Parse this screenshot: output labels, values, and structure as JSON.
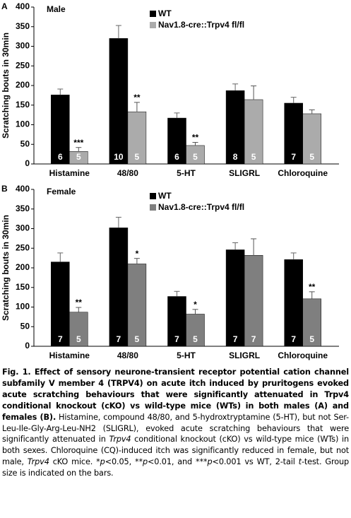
{
  "chart_data": [
    {
      "type": "bar",
      "panel": "A",
      "title": "Male",
      "ylabel": "Scratching bouts in 30min",
      "categories": [
        "Histamine",
        "48/80",
        "5-HT",
        "SLIGRL",
        "Chloroquine"
      ],
      "series": [
        {
          "name": "WT",
          "color": "#000000",
          "values": [
            176,
            320,
            117,
            187,
            155
          ],
          "errors": [
            15,
            33,
            13,
            17,
            15
          ],
          "n_labels": [
            6,
            10,
            6,
            8,
            7
          ],
          "sig_labels": [
            null,
            null,
            null,
            null,
            null
          ]
        },
        {
          "name": "Nav1.8-cre::Trpv4 fl/fl",
          "color": "#ababab",
          "values": [
            32,
            133,
            47,
            164,
            128
          ],
          "errors": [
            10,
            24,
            8,
            35,
            10
          ],
          "n_labels": [
            5,
            5,
            5,
            5,
            5
          ],
          "sig_labels": [
            "***",
            "**",
            "**",
            null,
            null
          ]
        }
      ],
      "ylim": [
        0,
        400
      ],
      "yticks": [
        0,
        50,
        100,
        150,
        200,
        250,
        300,
        350,
        400
      ]
    },
    {
      "type": "bar",
      "panel": "B",
      "title": "Female",
      "ylabel": "Scratching bouts in 30min",
      "categories": [
        "Histamine",
        "48/80",
        "5-HT",
        "SLIGRL",
        "Chloroquine"
      ],
      "series": [
        {
          "name": "WT",
          "color": "#000000",
          "values": [
            215,
            302,
            127,
            246,
            221
          ],
          "errors": [
            23,
            27,
            13,
            18,
            17
          ],
          "n_labels": [
            7,
            7,
            7,
            7,
            7
          ],
          "sig_labels": [
            null,
            null,
            null,
            null,
            null
          ]
        },
        {
          "name": "Nav1.8-cre::Trpv4 fl/fl",
          "color": "#7f7f7f",
          "values": [
            87,
            210,
            82,
            232,
            121
          ],
          "errors": [
            12,
            14,
            12,
            42,
            18
          ],
          "n_labels": [
            5,
            5,
            5,
            7,
            5
          ],
          "sig_labels": [
            "**",
            "*",
            "*",
            null,
            "**"
          ]
        }
      ],
      "ylim": [
        0,
        400
      ],
      "yticks": [
        0,
        50,
        100,
        150,
        200,
        250,
        300,
        350,
        400
      ]
    }
  ],
  "caption": [
    {
      "text": "Fig. 1. Effect of sensory neurone-transient receptor potential cation channel subfamily V member 4 (TRPV4) on acute itch induced by pruritogens evoked acute scratching behaviours that were significantly attenuated in Trpv4 conditional knockout (cKO) vs wild-type mice (WTs) in both males (A) and females (B).",
      "style": "bold"
    },
    {
      "text": " Histamine, compound 48/80, and 5-hydroxtryptamine (5-HT), but not Ser-Leu-Ile-Gly-Arg-Leu-NH2 (SLIGRL), evoked acute scratching behaviours that were significantly attenuated in "
    },
    {
      "text": "Trpv4",
      "style": "italic"
    },
    {
      "text": " conditional knockout (cKO) vs wild-type mice (WTs) in both sexes. Chloroquine (CQ)-induced itch was significantly reduced in female, but not male, "
    },
    {
      "text": "Trpv4",
      "style": "italic"
    },
    {
      "text": " cKO mice. *"
    },
    {
      "text": "p",
      "style": "italic"
    },
    {
      "text": "<0.05, **"
    },
    {
      "text": "p",
      "style": "italic"
    },
    {
      "text": "<0.01, and ***"
    },
    {
      "text": "p",
      "style": "italic"
    },
    {
      "text": "<0.001 vs WT, 2-tail "
    },
    {
      "text": "t",
      "style": "italic"
    },
    {
      "text": "-test. Group size is indicated on the bars."
    }
  ]
}
